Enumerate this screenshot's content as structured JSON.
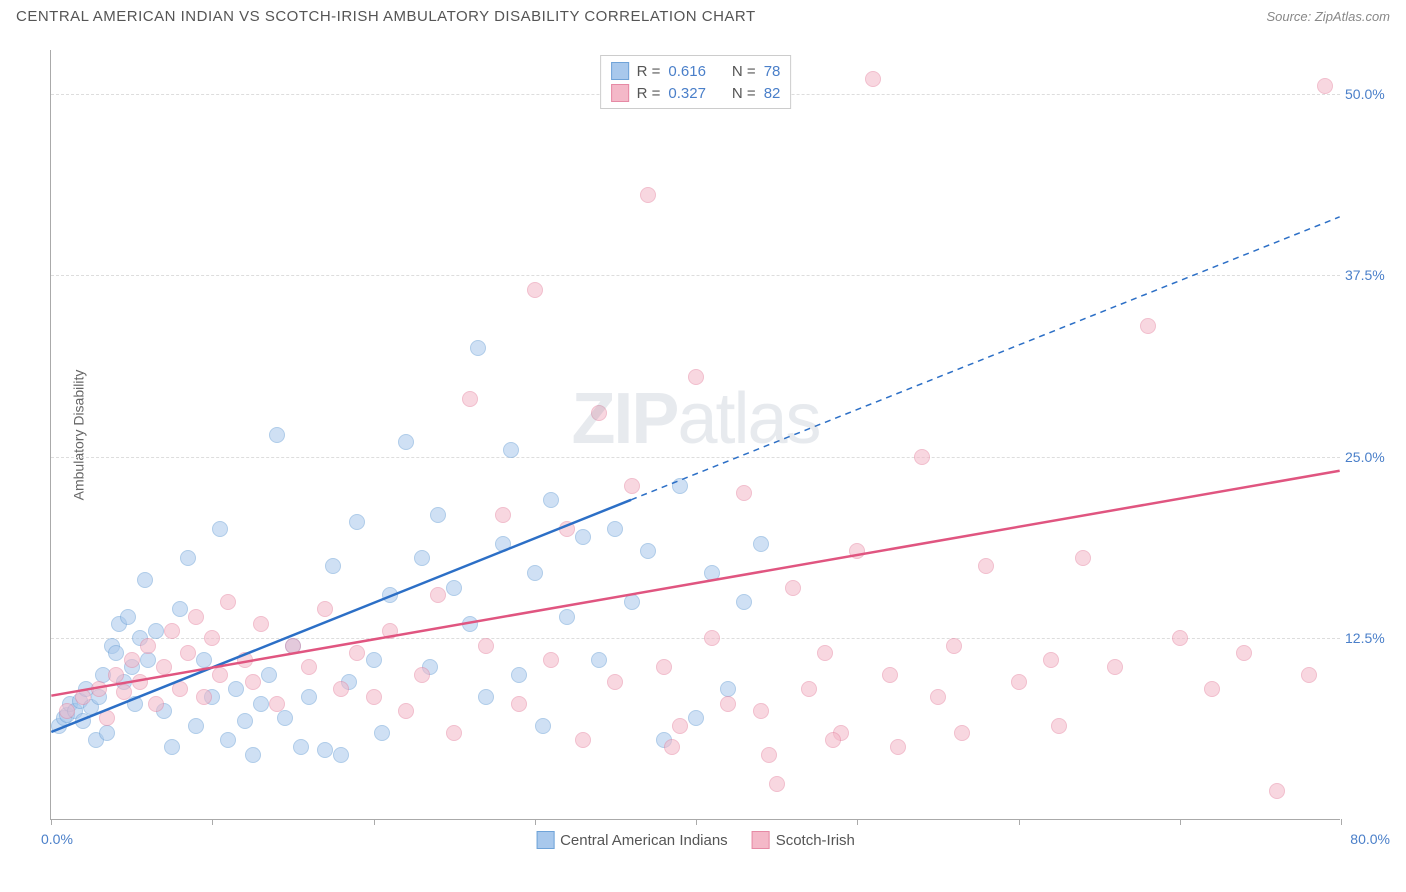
{
  "title": "CENTRAL AMERICAN INDIAN VS SCOTCH-IRISH AMBULATORY DISABILITY CORRELATION CHART",
  "source": "Source: ZipAtlas.com",
  "watermark": {
    "bold": "ZIP",
    "light": "atlas"
  },
  "y_axis_label": "Ambulatory Disability",
  "chart": {
    "type": "scatter",
    "xlim": [
      0,
      80
    ],
    "ylim": [
      0,
      53
    ],
    "x_origin": "0.0%",
    "x_max": "80.0%",
    "y_ticks": [
      {
        "value": 12.5,
        "label": "12.5%"
      },
      {
        "value": 25.0,
        "label": "25.0%"
      },
      {
        "value": 37.5,
        "label": "37.5%"
      },
      {
        "value": 50.0,
        "label": "50.0%"
      }
    ],
    "x_ticks": [
      0,
      10,
      20,
      30,
      40,
      50,
      60,
      70,
      80
    ],
    "grid_color": "#dddddd",
    "background_color": "#ffffff",
    "point_radius": 8,
    "point_opacity": 0.55,
    "series": [
      {
        "name": "Central American Indians",
        "color_fill": "#a8c8ec",
        "color_stroke": "#6fa3d8",
        "R": "0.616",
        "N": "78",
        "regression": {
          "x1": 0,
          "y1": 6.0,
          "x2": 36,
          "y2": 22.0,
          "x2_ext": 80,
          "y2_ext": 41.5,
          "color": "#2c6fc6",
          "width": 2.5,
          "dash_ext": "6,5"
        },
        "points": [
          [
            0.5,
            6.5
          ],
          [
            0.8,
            7.0
          ],
          [
            1.0,
            7.2
          ],
          [
            1.2,
            8.0
          ],
          [
            1.5,
            7.5
          ],
          [
            1.8,
            8.2
          ],
          [
            2.0,
            6.8
          ],
          [
            2.2,
            9.0
          ],
          [
            2.5,
            7.8
          ],
          [
            2.8,
            5.5
          ],
          [
            3.0,
            8.5
          ],
          [
            3.2,
            10.0
          ],
          [
            3.5,
            6.0
          ],
          [
            3.8,
            12.0
          ],
          [
            4.0,
            11.5
          ],
          [
            4.2,
            13.5
          ],
          [
            4.5,
            9.5
          ],
          [
            4.8,
            14.0
          ],
          [
            5.0,
            10.5
          ],
          [
            5.2,
            8.0
          ],
          [
            5.5,
            12.5
          ],
          [
            5.8,
            16.5
          ],
          [
            6.0,
            11.0
          ],
          [
            6.5,
            13.0
          ],
          [
            7.0,
            7.5
          ],
          [
            7.5,
            5.0
          ],
          [
            8.0,
            14.5
          ],
          [
            8.5,
            18.0
          ],
          [
            9.0,
            6.5
          ],
          [
            9.5,
            11.0
          ],
          [
            10.0,
            8.5
          ],
          [
            10.5,
            20.0
          ],
          [
            11.0,
            5.5
          ],
          [
            11.5,
            9.0
          ],
          [
            12.0,
            6.8
          ],
          [
            12.5,
            4.5
          ],
          [
            13.0,
            8.0
          ],
          [
            13.5,
            10.0
          ],
          [
            14.0,
            26.5
          ],
          [
            14.5,
            7.0
          ],
          [
            15.0,
            12.0
          ],
          [
            15.5,
            5.0
          ],
          [
            16.0,
            8.5
          ],
          [
            17.0,
            4.8
          ],
          [
            17.5,
            17.5
          ],
          [
            18.0,
            4.5
          ],
          [
            18.5,
            9.5
          ],
          [
            19.0,
            20.5
          ],
          [
            20.0,
            11.0
          ],
          [
            20.5,
            6.0
          ],
          [
            21.0,
            15.5
          ],
          [
            22.0,
            26.0
          ],
          [
            23.0,
            18.0
          ],
          [
            23.5,
            10.5
          ],
          [
            24.0,
            21.0
          ],
          [
            25.0,
            16.0
          ],
          [
            26.0,
            13.5
          ],
          [
            26.5,
            32.5
          ],
          [
            27.0,
            8.5
          ],
          [
            28.0,
            19.0
          ],
          [
            28.5,
            25.5
          ],
          [
            29.0,
            10.0
          ],
          [
            30.0,
            17.0
          ],
          [
            30.5,
            6.5
          ],
          [
            31.0,
            22.0
          ],
          [
            32.0,
            14.0
          ],
          [
            33.0,
            19.5
          ],
          [
            34.0,
            11.0
          ],
          [
            35.0,
            20.0
          ],
          [
            36.0,
            15.0
          ],
          [
            37.0,
            18.5
          ],
          [
            38.0,
            5.5
          ],
          [
            39.0,
            23.0
          ],
          [
            40.0,
            7.0
          ],
          [
            41.0,
            17.0
          ],
          [
            42.0,
            9.0
          ],
          [
            43.0,
            15.0
          ],
          [
            44.0,
            19.0
          ]
        ]
      },
      {
        "name": "Scotch-Irish",
        "color_fill": "#f4b8c8",
        "color_stroke": "#e68aa5",
        "R": "0.327",
        "N": "82",
        "regression": {
          "x1": 0,
          "y1": 8.5,
          "x2": 80,
          "y2": 24.0,
          "color": "#e05580",
          "width": 2.5
        },
        "points": [
          [
            1.0,
            7.5
          ],
          [
            2.0,
            8.5
          ],
          [
            3.0,
            9.0
          ],
          [
            3.5,
            7.0
          ],
          [
            4.0,
            10.0
          ],
          [
            4.5,
            8.8
          ],
          [
            5.0,
            11.0
          ],
          [
            5.5,
            9.5
          ],
          [
            6.0,
            12.0
          ],
          [
            6.5,
            8.0
          ],
          [
            7.0,
            10.5
          ],
          [
            7.5,
            13.0
          ],
          [
            8.0,
            9.0
          ],
          [
            8.5,
            11.5
          ],
          [
            9.0,
            14.0
          ],
          [
            9.5,
            8.5
          ],
          [
            10.0,
            12.5
          ],
          [
            10.5,
            10.0
          ],
          [
            11.0,
            15.0
          ],
          [
            12.0,
            11.0
          ],
          [
            12.5,
            9.5
          ],
          [
            13.0,
            13.5
          ],
          [
            14.0,
            8.0
          ],
          [
            15.0,
            12.0
          ],
          [
            16.0,
            10.5
          ],
          [
            17.0,
            14.5
          ],
          [
            18.0,
            9.0
          ],
          [
            19.0,
            11.5
          ],
          [
            20.0,
            8.5
          ],
          [
            21.0,
            13.0
          ],
          [
            22.0,
            7.5
          ],
          [
            23.0,
            10.0
          ],
          [
            24.0,
            15.5
          ],
          [
            25.0,
            6.0
          ],
          [
            26.0,
            29.0
          ],
          [
            27.0,
            12.0
          ],
          [
            28.0,
            21.0
          ],
          [
            29.0,
            8.0
          ],
          [
            30.0,
            36.5
          ],
          [
            31.0,
            11.0
          ],
          [
            32.0,
            20.0
          ],
          [
            33.0,
            5.5
          ],
          [
            34.0,
            28.0
          ],
          [
            35.0,
            9.5
          ],
          [
            36.0,
            23.0
          ],
          [
            37.0,
            43.0
          ],
          [
            38.0,
            10.5
          ],
          [
            39.0,
            6.5
          ],
          [
            40.0,
            30.5
          ],
          [
            41.0,
            12.5
          ],
          [
            42.0,
            8.0
          ],
          [
            43.0,
            22.5
          ],
          [
            44.0,
            7.5
          ],
          [
            45.0,
            2.5
          ],
          [
            46.0,
            16.0
          ],
          [
            47.0,
            9.0
          ],
          [
            48.0,
            11.5
          ],
          [
            49.0,
            6.0
          ],
          [
            50.0,
            18.5
          ],
          [
            51.0,
            51.0
          ],
          [
            52.0,
            10.0
          ],
          [
            54.0,
            25.0
          ],
          [
            55.0,
            8.5
          ],
          [
            56.0,
            12.0
          ],
          [
            58.0,
            17.5
          ],
          [
            60.0,
            9.5
          ],
          [
            62.0,
            11.0
          ],
          [
            64.0,
            18.0
          ],
          [
            66.0,
            10.5
          ],
          [
            68.0,
            34.0
          ],
          [
            70.0,
            12.5
          ],
          [
            72.0,
            9.0
          ],
          [
            74.0,
            11.5
          ],
          [
            76.0,
            2.0
          ],
          [
            78.0,
            10.0
          ],
          [
            79.0,
            50.5
          ],
          [
            62.5,
            6.5
          ],
          [
            56.5,
            6.0
          ],
          [
            48.5,
            5.5
          ],
          [
            52.5,
            5.0
          ],
          [
            44.5,
            4.5
          ],
          [
            38.5,
            5.0
          ]
        ]
      }
    ]
  },
  "stats_labels": {
    "R": "R =",
    "N": "N ="
  },
  "legend_labels": {
    "series1": "Central American Indians",
    "series2": "Scotch-Irish"
  }
}
